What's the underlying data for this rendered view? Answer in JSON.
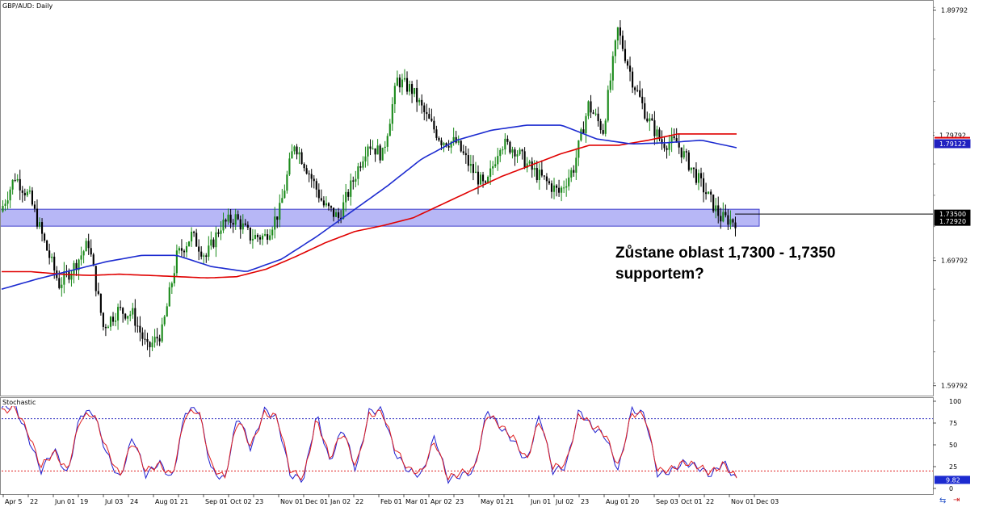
{
  "chart_data": [
    {
      "type": "candlestick",
      "title": "GBP/AUD, Daily",
      "instrument": "GBP/AUD",
      "timeframe": "Daily",
      "ylim": [
        1.59,
        1.906
      ],
      "y_ticks": [
        "1.89792",
        "1.79792",
        "1.69792",
        "1.59792"
      ],
      "x_ticks": [
        "Apr 5",
        "22",
        "Jun 01",
        "19",
        "Jul 03",
        "24",
        "Aug 01",
        "21",
        "Sep 01",
        "Oct 02",
        "23",
        "Nov 01",
        "Dec 01",
        "Jan 02",
        "22",
        "Feb 01",
        "Mar 01",
        "Apr 02",
        "23",
        "May 01",
        "21",
        "Jun 01",
        "Jul 02",
        "23",
        "Aug 01",
        "20",
        "Sep 03",
        "Oct 01",
        "22",
        "Nov 01",
        "Dec 03"
      ],
      "price_path": [
        1.737,
        1.765,
        1.748,
        1.712,
        1.679,
        1.693,
        1.712,
        1.645,
        1.658,
        1.655,
        1.627,
        1.641,
        1.701,
        1.718,
        1.701,
        1.726,
        1.732,
        1.717,
        1.717,
        1.738,
        1.792,
        1.768,
        1.742,
        1.732,
        1.762,
        1.792,
        1.782,
        1.842,
        1.834,
        1.812,
        1.794,
        1.792,
        1.772,
        1.755,
        1.792,
        1.787,
        1.772,
        1.762,
        1.752,
        1.772,
        1.822,
        1.802,
        1.882,
        1.842,
        1.812,
        1.792,
        1.792,
        1.772,
        1.752,
        1.732,
        1.7295
      ],
      "ma_red_path": [
        1.689,
        1.689,
        1.687,
        1.686,
        1.687,
        1.686,
        1.685,
        1.684,
        1.685,
        1.691,
        1.701,
        1.712,
        1.721,
        1.726,
        1.732,
        1.743,
        1.754,
        1.765,
        1.774,
        1.783,
        1.79,
        1.79,
        1.794,
        1.799,
        1.799,
        1.799
      ],
      "ma_blue_path": [
        1.675,
        1.683,
        1.69,
        1.697,
        1.702,
        1.702,
        1.693,
        1.689,
        1.699,
        1.717,
        1.737,
        1.757,
        1.779,
        1.794,
        1.802,
        1.806,
        1.806,
        1.795,
        1.791,
        1.792,
        1.794,
        1.788
      ],
      "support_zone": [
        1.7292,
        1.735
      ],
      "price_labels": [
        {
          "text": "1.79792",
          "color": "#ffffff",
          "fg": "#000000"
        },
        {
          "text": "1.79122",
          "color": "#2020c0",
          "fg": "#ffffff"
        },
        {
          "text": "1.73500",
          "color": "#000000",
          "fg": "#ffffff"
        },
        {
          "text": "1.72920",
          "color": "#000000",
          "fg": "#ffffff"
        }
      ],
      "colors": {
        "up": "#1a8a1a",
        "down": "#000000",
        "ma_red": "#e00000",
        "ma_blue": "#1c2bd0",
        "zone": "#7b7bef"
      }
    },
    {
      "type": "line",
      "title": "Stochastic",
      "ylim": [
        0,
        100
      ],
      "y_ticks": [
        "100",
        "75",
        "50",
        "25",
        "0"
      ],
      "levels": [
        80,
        20
      ],
      "current_value": "9.82",
      "series": [
        {
          "color": "#2020d0",
          "values": [
            92,
            95,
            60,
            20,
            45,
            15,
            85,
            88,
            40,
            10,
            60,
            15,
            30,
            10,
            88,
            92,
            20,
            10,
            85,
            45,
            90,
            80,
            15,
            10,
            85,
            30,
            70,
            20,
            88,
            90,
            40,
            20,
            15,
            60,
            10,
            15,
            20,
            90,
            70,
            55,
            30,
            85,
            20,
            25,
            90,
            70,
            60,
            20,
            90,
            85,
            15,
            20,
            30,
            25,
            15,
            30,
            10
          ]
        },
        {
          "color": "#e02020",
          "values": [
            88,
            93,
            65,
            25,
            42,
            20,
            80,
            86,
            45,
            14,
            55,
            20,
            28,
            14,
            84,
            90,
            25,
            12,
            80,
            48,
            86,
            82,
            20,
            12,
            80,
            35,
            65,
            24,
            84,
            88,
            45,
            22,
            18,
            55,
            12,
            18,
            22,
            86,
            72,
            58,
            32,
            80,
            24,
            28,
            86,
            72,
            62,
            24,
            86,
            84,
            20,
            22,
            30,
            26,
            18,
            28,
            12
          ]
        }
      ]
    }
  ],
  "annotation": {
    "line1": "Zůstane oblast 1,7300 - 1,7350",
    "line2": "supportem?"
  },
  "footer_icons": [
    "sync-icon",
    "red-arrow-icon"
  ]
}
